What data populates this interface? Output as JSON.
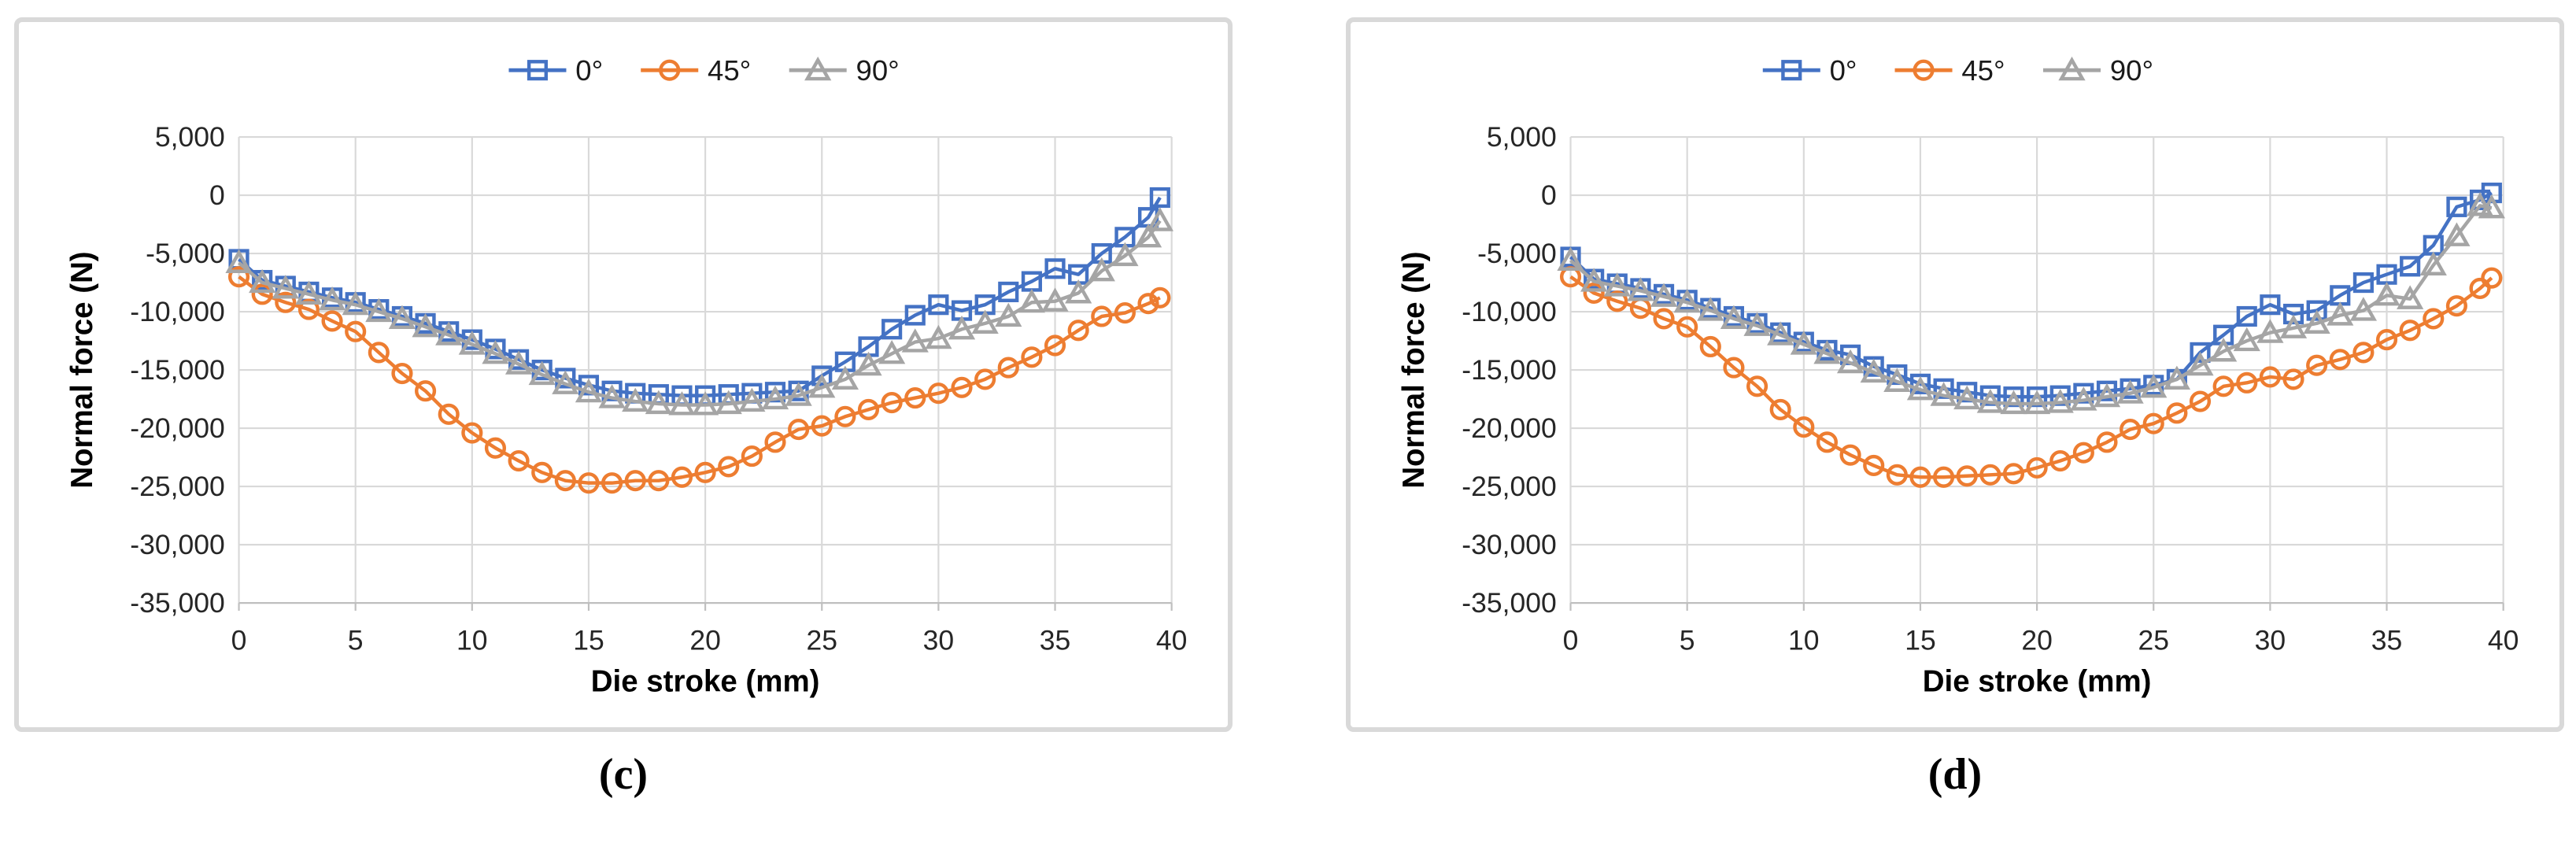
{
  "styles": {
    "grid_color": "#d9d9d9",
    "axis_line_color": "#bfbfbf",
    "tick_text_color": "#262626",
    "title_text_color": "#000000",
    "panel_border_color": "#d9d9d9",
    "series_colors": {
      "deg0": "#4472c4",
      "deg45": "#ed7d31",
      "deg90": "#a5a5a5"
    }
  },
  "chart_data": [
    {
      "type": "line",
      "panel_label": "(c)",
      "xlabel": "Die stroke (mm)",
      "ylabel": "Normal force (N)",
      "xlim": [
        0,
        40
      ],
      "ylim": [
        -35000,
        5000
      ],
      "xticks": [
        0,
        5,
        10,
        15,
        20,
        25,
        30,
        35,
        40
      ],
      "yticks": [
        5000,
        0,
        -5000,
        -10000,
        -15000,
        -20000,
        -25000,
        -30000,
        -35000
      ],
      "grid": true,
      "legend_position": "top",
      "legend_dx": 0,
      "x": [
        0,
        1,
        2,
        3,
        4,
        5,
        6,
        7,
        8,
        9,
        10,
        11,
        12,
        13,
        14,
        15,
        16,
        17,
        18,
        19,
        20,
        21,
        22,
        23,
        24,
        25,
        26,
        27,
        28,
        29,
        30,
        31,
        32,
        33,
        34,
        35,
        36,
        37,
        38,
        39,
        39.5
      ],
      "series": [
        {
          "name": "0°",
          "marker": "square",
          "color": "#4472c4",
          "values": [
            -5500,
            -7300,
            -7800,
            -8300,
            -8800,
            -9200,
            -9800,
            -10400,
            -11000,
            -11700,
            -12400,
            -13200,
            -14100,
            -15000,
            -15700,
            -16300,
            -16800,
            -17000,
            -17100,
            -17200,
            -17200,
            -17100,
            -17000,
            -16900,
            -16800,
            -15500,
            -14300,
            -13000,
            -11500,
            -10300,
            -9400,
            -9900,
            -9400,
            -8300,
            -7400,
            -6300,
            -6800,
            -5000,
            -3600,
            -1900,
            -200
          ]
        },
        {
          "name": "45°",
          "marker": "circle",
          "color": "#ed7d31",
          "values": [
            -7000,
            -8500,
            -9200,
            -9800,
            -10800,
            -11700,
            -13500,
            -15300,
            -16800,
            -18800,
            -20400,
            -21700,
            -22800,
            -23800,
            -24500,
            -24700,
            -24700,
            -24500,
            -24500,
            -24200,
            -23800,
            -23300,
            -22400,
            -21200,
            -20100,
            -19800,
            -19000,
            -18400,
            -17800,
            -17400,
            -17000,
            -16500,
            -15800,
            -14800,
            -13900,
            -12900,
            -11600,
            -10400,
            -10100,
            -9300,
            -8800
          ]
        },
        {
          "name": "90°",
          "marker": "triangle",
          "color": "#a5a5a5",
          "values": [
            -5800,
            -7500,
            -8000,
            -8500,
            -9000,
            -9400,
            -10000,
            -10600,
            -11300,
            -12000,
            -12800,
            -13600,
            -14500,
            -15400,
            -16200,
            -16900,
            -17400,
            -17700,
            -17900,
            -18000,
            -18000,
            -17900,
            -17700,
            -17500,
            -17200,
            -16500,
            -15800,
            -14600,
            -13600,
            -12600,
            -12300,
            -11500,
            -11000,
            -10400,
            -9200,
            -9100,
            -8400,
            -6500,
            -5200,
            -3600,
            -2200
          ]
        }
      ]
    },
    {
      "type": "line",
      "panel_label": "(d)",
      "xlabel": "Die stroke (mm)",
      "ylabel": "Normal force (N)",
      "xlim": [
        0,
        40
      ],
      "ylim": [
        -35000,
        5000
      ],
      "xticks": [
        0,
        5,
        10,
        15,
        20,
        25,
        30,
        35,
        40
      ],
      "yticks": [
        5000,
        0,
        -5000,
        -10000,
        -15000,
        -20000,
        -25000,
        -30000,
        -35000
      ],
      "grid": true,
      "legend_position": "top",
      "legend_dx": -100,
      "x": [
        0,
        1,
        2,
        3,
        4,
        5,
        6,
        7,
        8,
        9,
        10,
        11,
        12,
        13,
        14,
        15,
        16,
        17,
        18,
        19,
        20,
        21,
        22,
        23,
        24,
        25,
        26,
        27,
        28,
        29,
        30,
        31,
        32,
        33,
        34,
        35,
        36,
        37,
        38,
        39,
        39.5
      ],
      "series": [
        {
          "name": "0°",
          "marker": "square",
          "color": "#4472c4",
          "values": [
            -5300,
            -7200,
            -7600,
            -8000,
            -8500,
            -9000,
            -9700,
            -10400,
            -11000,
            -11800,
            -12600,
            -13300,
            -13700,
            -14700,
            -15400,
            -16200,
            -16600,
            -16900,
            -17200,
            -17300,
            -17300,
            -17200,
            -17000,
            -16800,
            -16600,
            -16300,
            -15800,
            -13500,
            -12000,
            -10400,
            -9400,
            -10200,
            -9900,
            -8600,
            -7500,
            -6800,
            -6100,
            -4300,
            -1000,
            -400,
            200
          ]
        },
        {
          "name": "45°",
          "marker": "circle",
          "color": "#ed7d31",
          "values": [
            -7000,
            -8400,
            -9100,
            -9700,
            -10600,
            -11300,
            -13000,
            -14800,
            -16400,
            -18400,
            -19900,
            -21200,
            -22300,
            -23200,
            -24000,
            -24200,
            -24200,
            -24100,
            -24000,
            -23900,
            -23400,
            -22800,
            -22100,
            -21200,
            -20100,
            -19600,
            -18700,
            -17700,
            -16400,
            -16100,
            -15600,
            -15800,
            -14600,
            -14100,
            -13500,
            -12400,
            -11600,
            -10600,
            -9500,
            -8000,
            -7100
          ]
        },
        {
          "name": "90°",
          "marker": "triangle",
          "color": "#a5a5a5",
          "values": [
            -5600,
            -7400,
            -7800,
            -8200,
            -8700,
            -9200,
            -9900,
            -10600,
            -11200,
            -12000,
            -12800,
            -13600,
            -14400,
            -15200,
            -16000,
            -16700,
            -17200,
            -17500,
            -17800,
            -17900,
            -17900,
            -17800,
            -17600,
            -17300,
            -17000,
            -16500,
            -15800,
            -14600,
            -13400,
            -12500,
            -11800,
            -11400,
            -11000,
            -10300,
            -9900,
            -8600,
            -8900,
            -6000,
            -3500,
            -900,
            -1100
          ]
        }
      ]
    }
  ]
}
